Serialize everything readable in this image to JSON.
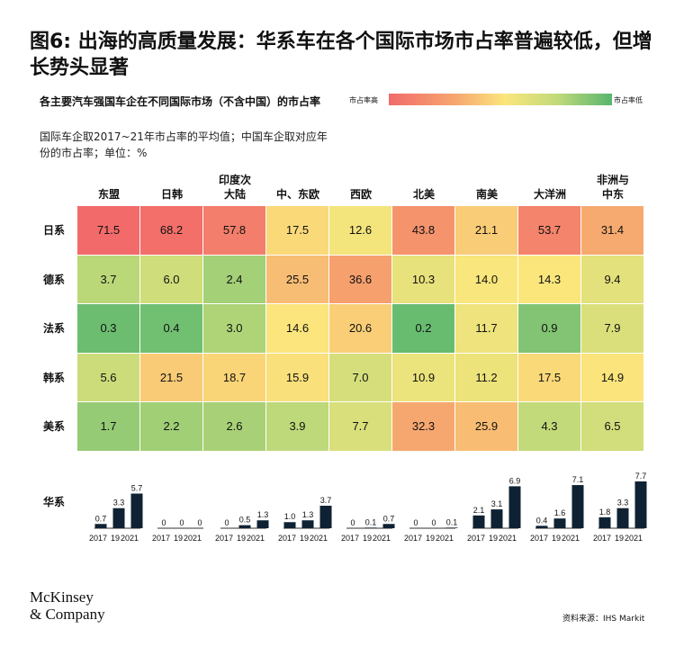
{
  "title": "图6: 出海的高质量发展：华系车在各个国际市场市占率普遍较低，但增长势头显著",
  "subtitle": "各主要汽车强国车企在不同国际市场（不含中国）的市占率",
  "note": "国际车企取2017~21年市占率的平均值；中国车企取对应年份的市占率；单位：%",
  "legend": {
    "high": "市占率高",
    "low": "市占率低"
  },
  "source": "资料来源：IHS Markit",
  "brand": {
    "line1": "McKinsey",
    "line2": "& Company"
  },
  "colors": {
    "high": "#f26a6a",
    "mid": "#fbe67c",
    "low": "#57b66e",
    "china_bar": "#0e2233"
  },
  "chart_data": [
    {
      "type": "heatmap",
      "columns": [
        "东盟",
        "日韩",
        "印度次大陆",
        "中、东欧",
        "西欧",
        "北美",
        "南美",
        "大洋洲",
        "非洲与中东"
      ],
      "rows": [
        "日系",
        "德系",
        "法系",
        "韩系",
        "美系"
      ],
      "values": [
        [
          71.5,
          68.2,
          57.8,
          17.5,
          12.6,
          43.8,
          21.1,
          53.7,
          31.4
        ],
        [
          3.7,
          6.0,
          2.4,
          25.5,
          36.6,
          10.3,
          14.0,
          14.3,
          9.4
        ],
        [
          0.3,
          0.4,
          3.0,
          14.6,
          20.6,
          0.2,
          11.7,
          0.9,
          7.9
        ],
        [
          5.6,
          21.5,
          18.7,
          15.9,
          7.0,
          10.9,
          11.2,
          17.5,
          14.9
        ],
        [
          1.7,
          2.2,
          2.6,
          3.9,
          7.7,
          32.3,
          25.9,
          4.3,
          6.5
        ]
      ],
      "display": [
        [
          "71.5",
          "68.2",
          "57.8",
          "17.5",
          "12.6",
          "43.8",
          "21.1",
          "53.7",
          "31.4"
        ],
        [
          "3.7",
          "6.0",
          "2.4",
          "25.5",
          "36.6",
          "10.3",
          "14.0",
          "14.3",
          "9.4"
        ],
        [
          "0.3",
          "0.4",
          "3.0",
          "14.6",
          "20.6",
          "0.2",
          "11.7",
          "0.9",
          "7.9"
        ],
        [
          "5.6",
          "21.5",
          "18.7",
          "15.9",
          "7.0",
          "10.9",
          "11.2",
          "17.5",
          "14.9"
        ],
        [
          "1.7",
          "2.2",
          "2.6",
          "3.9",
          "7.7",
          "32.3",
          "25.9",
          "4.3",
          "6.5"
        ]
      ]
    },
    {
      "type": "bar",
      "row_label": "华系",
      "x": [
        "2017",
        "19",
        "2021"
      ],
      "series": [
        {
          "values": [
            0.7,
            3.3,
            5.7
          ],
          "labels": [
            "0.7",
            "3.3",
            "5.7"
          ]
        },
        {
          "values": [
            0,
            0,
            0
          ],
          "labels": [
            "0",
            "0",
            "0"
          ]
        },
        {
          "values": [
            0,
            0.5,
            1.3
          ],
          "labels": [
            "0",
            "0.5",
            "1.3"
          ]
        },
        {
          "values": [
            1.0,
            1.3,
            3.7
          ],
          "labels": [
            "1.0",
            "1.3",
            "3.7"
          ]
        },
        {
          "values": [
            0,
            0.1,
            0.7
          ],
          "labels": [
            "0",
            "0.1",
            "0.7"
          ]
        },
        {
          "values": [
            0,
            0,
            0.1
          ],
          "labels": [
            "0",
            "0",
            "0.1"
          ]
        },
        {
          "values": [
            2.1,
            3.1,
            6.9
          ],
          "labels": [
            "2.1",
            "3.1",
            "6.9"
          ]
        },
        {
          "values": [
            0.4,
            1.6,
            7.1
          ],
          "labels": [
            "0.4",
            "1.6",
            "7.1"
          ]
        },
        {
          "values": [
            1.8,
            3.3,
            7.7
          ],
          "labels": [
            "1.8",
            "3.3",
            "7.7"
          ]
        }
      ]
    }
  ]
}
